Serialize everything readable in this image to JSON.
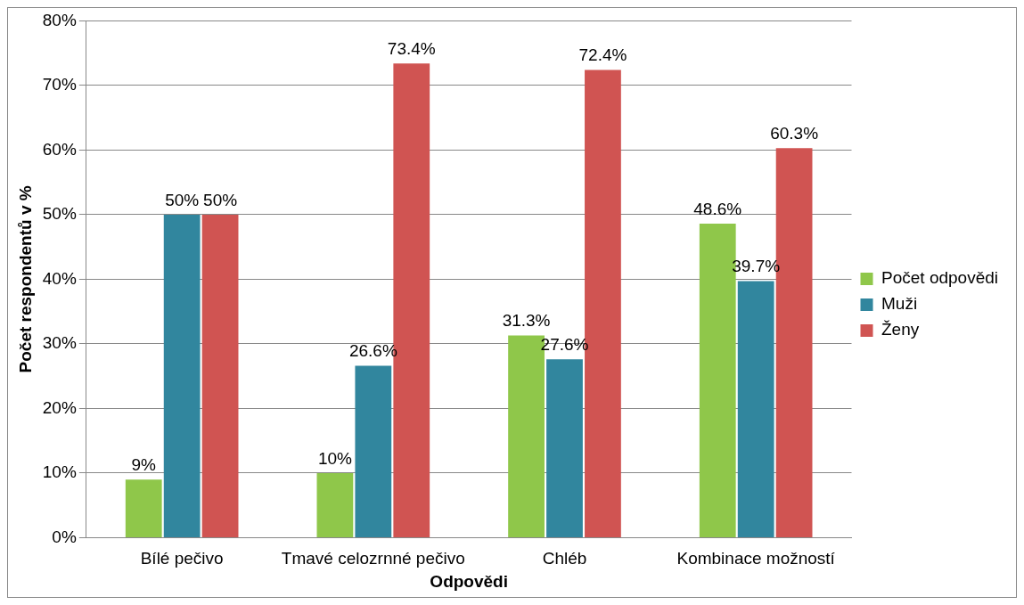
{
  "chart_data": {
    "type": "bar",
    "xlabel": "Odpovědi",
    "ylabel": "Počet respondentů v %",
    "categories": [
      "Bílé pečivo",
      "Tmavé celozrnné pečivo",
      "Chléb",
      "Kombinace možností"
    ],
    "series": [
      {
        "name": "Počet odpovědi",
        "color": "#8fc74a",
        "values": [
          9,
          10,
          31.3,
          48.6
        ],
        "value_labels": [
          "9%",
          "10%",
          "31.3%",
          "48.6%"
        ]
      },
      {
        "name": "Muži",
        "color": "#31869e",
        "values": [
          50,
          26.6,
          27.6,
          39.7
        ],
        "value_labels": [
          "50%",
          "26.6%",
          "27.6%",
          "39.7%"
        ]
      },
      {
        "name": "Ženy",
        "color": "#d05452",
        "values": [
          50,
          73.4,
          72.4,
          60.3
        ],
        "value_labels": [
          "50%",
          "73.4%",
          "72.4%",
          "60.3%"
        ]
      }
    ],
    "ylim": [
      0,
      80
    ],
    "yticks": [
      {
        "value": 0,
        "label": "0%"
      },
      {
        "value": 10,
        "label": "10%"
      },
      {
        "value": 20,
        "label": "20%"
      },
      {
        "value": 30,
        "label": "30%"
      },
      {
        "value": 40,
        "label": "40%"
      },
      {
        "value": 50,
        "label": "50%"
      },
      {
        "value": 60,
        "label": "60%"
      },
      {
        "value": 70,
        "label": "70%"
      },
      {
        "value": 80,
        "label": "80%"
      }
    ],
    "grid": "y",
    "legend": "right"
  }
}
